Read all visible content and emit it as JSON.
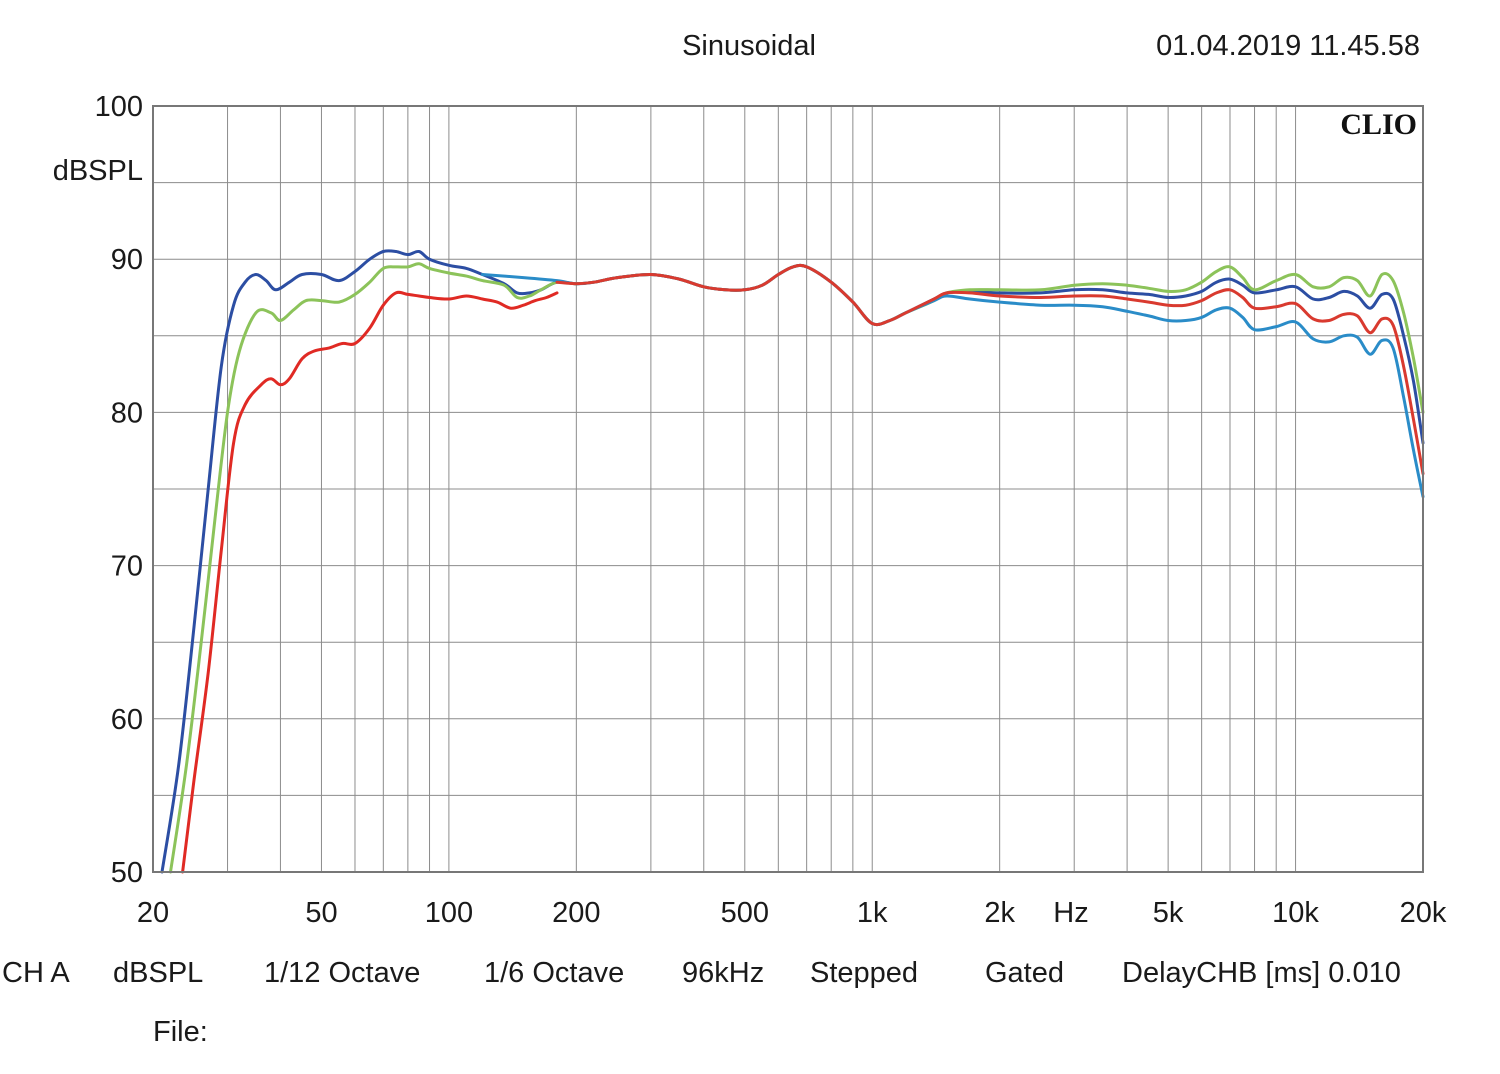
{
  "header": {
    "mode": "Sinusoidal",
    "timestamp": "01.04.2019 11.45.58"
  },
  "brand": "CLIO",
  "footer": {
    "channel": "CH A",
    "unit": "dBSPL",
    "smoothing": "1/12 Octave",
    "resolution": "1/6 Octave",
    "sample_rate": "96kHz",
    "sweep": "Stepped",
    "window": "Gated",
    "delay": "DelayCHB [ms] 0.010",
    "file_label": "File:"
  },
  "chart_data": {
    "type": "line",
    "title": "",
    "xlabel": "Hz",
    "ylabel": "dBSPL",
    "xscale": "log",
    "xlim": [
      20,
      20000
    ],
    "ylim": [
      50,
      100
    ],
    "grid": true,
    "x_ticks": [
      {
        "value": 20,
        "label": "20"
      },
      {
        "value": 50,
        "label": "50"
      },
      {
        "value": 100,
        "label": "100"
      },
      {
        "value": 200,
        "label": "200"
      },
      {
        "value": 500,
        "label": "500"
      },
      {
        "value": 1000,
        "label": "1k"
      },
      {
        "value": 2000,
        "label": "2k"
      },
      {
        "value": 5000,
        "label": "5k"
      },
      {
        "value": 10000,
        "label": "10k"
      },
      {
        "value": 20000,
        "label": "20k"
      }
    ],
    "y_ticks": [
      {
        "value": 50,
        "label": "50"
      },
      {
        "value": 60,
        "label": "60"
      },
      {
        "value": 70,
        "label": "70"
      },
      {
        "value": 80,
        "label": "80"
      },
      {
        "value": 90,
        "label": "90"
      },
      {
        "value": 100,
        "label": "100"
      }
    ],
    "series": [
      {
        "color": "#2c4ea3",
        "points": [
          [
            21,
            50
          ],
          [
            23,
            57
          ],
          [
            25,
            66
          ],
          [
            27,
            75
          ],
          [
            29,
            83
          ],
          [
            31,
            87
          ],
          [
            33,
            88.5
          ],
          [
            35,
            89
          ],
          [
            37,
            88.6
          ],
          [
            39,
            88
          ],
          [
            42,
            88.5
          ],
          [
            45,
            89
          ],
          [
            50,
            89
          ],
          [
            55,
            88.6
          ],
          [
            60,
            89.2
          ],
          [
            65,
            90
          ],
          [
            70,
            90.5
          ],
          [
            75,
            90.5
          ],
          [
            80,
            90.3
          ],
          [
            85,
            90.5
          ],
          [
            90,
            90
          ],
          [
            100,
            89.6
          ],
          [
            110,
            89.4
          ],
          [
            120,
            89
          ],
          [
            135,
            88.4
          ],
          [
            145,
            87.8
          ],
          [
            155,
            87.8
          ],
          [
            165,
            88
          ],
          [
            180,
            88.5
          ],
          [
            200,
            88.4
          ],
          [
            220,
            88.5
          ],
          [
            250,
            88.8
          ],
          [
            300,
            89
          ],
          [
            350,
            88.7
          ],
          [
            400,
            88.2
          ],
          [
            450,
            88
          ],
          [
            500,
            88
          ],
          [
            550,
            88.3
          ],
          [
            600,
            89
          ],
          [
            650,
            89.5
          ],
          [
            700,
            89.5
          ],
          [
            800,
            88.5
          ],
          [
            900,
            87.2
          ],
          [
            1000,
            85.8
          ],
          [
            1100,
            86
          ],
          [
            1200,
            86.5
          ],
          [
            1400,
            87.4
          ],
          [
            1500,
            87.8
          ],
          [
            1700,
            87.9
          ],
          [
            2000,
            87.8
          ],
          [
            2500,
            87.8
          ],
          [
            3000,
            88
          ],
          [
            3500,
            88
          ],
          [
            4000,
            87.8
          ],
          [
            4500,
            87.7
          ],
          [
            5000,
            87.5
          ],
          [
            5500,
            87.6
          ],
          [
            6000,
            87.9
          ],
          [
            6500,
            88.5
          ],
          [
            7000,
            88.7
          ],
          [
            7500,
            88.3
          ],
          [
            8000,
            87.8
          ],
          [
            9000,
            88
          ],
          [
            10000,
            88.2
          ],
          [
            11000,
            87.4
          ],
          [
            12000,
            87.5
          ],
          [
            13000,
            87.9
          ],
          [
            14000,
            87.6
          ],
          [
            15000,
            86.8
          ],
          [
            16000,
            87.7
          ],
          [
            17000,
            87.4
          ],
          [
            18000,
            85
          ],
          [
            19000,
            82
          ],
          [
            20000,
            78
          ]
        ]
      },
      {
        "color": "#8cc35a",
        "points": [
          [
            22,
            50
          ],
          [
            24,
            57
          ],
          [
            26,
            65
          ],
          [
            28,
            73
          ],
          [
            30,
            80
          ],
          [
            32,
            84
          ],
          [
            35,
            86.5
          ],
          [
            38,
            86.5
          ],
          [
            40,
            86
          ],
          [
            43,
            86.7
          ],
          [
            46,
            87.3
          ],
          [
            50,
            87.3
          ],
          [
            55,
            87.2
          ],
          [
            60,
            87.7
          ],
          [
            65,
            88.5
          ],
          [
            70,
            89.4
          ],
          [
            75,
            89.5
          ],
          [
            80,
            89.5
          ],
          [
            85,
            89.7
          ],
          [
            90,
            89.4
          ],
          [
            100,
            89.1
          ],
          [
            110,
            88.9
          ],
          [
            120,
            88.6
          ],
          [
            135,
            88.3
          ],
          [
            145,
            87.5
          ],
          [
            155,
            87.6
          ],
          [
            165,
            88
          ],
          [
            180,
            88.5
          ],
          [
            200,
            88.4
          ],
          [
            220,
            88.5
          ],
          [
            250,
            88.8
          ],
          [
            300,
            89
          ],
          [
            350,
            88.7
          ],
          [
            400,
            88.2
          ],
          [
            450,
            88
          ],
          [
            500,
            88
          ],
          [
            550,
            88.3
          ],
          [
            600,
            89
          ],
          [
            650,
            89.5
          ],
          [
            700,
            89.5
          ],
          [
            800,
            88.5
          ],
          [
            900,
            87.2
          ],
          [
            1000,
            85.8
          ],
          [
            1100,
            86
          ],
          [
            1200,
            86.5
          ],
          [
            1400,
            87.3
          ],
          [
            1500,
            87.8
          ],
          [
            1700,
            88
          ],
          [
            2000,
            88
          ],
          [
            2500,
            88
          ],
          [
            3000,
            88.3
          ],
          [
            3500,
            88.4
          ],
          [
            4000,
            88.3
          ],
          [
            4500,
            88.1
          ],
          [
            5000,
            87.9
          ],
          [
            5500,
            88
          ],
          [
            6000,
            88.5
          ],
          [
            6500,
            89.2
          ],
          [
            7000,
            89.5
          ],
          [
            7500,
            88.8
          ],
          [
            8000,
            88
          ],
          [
            9000,
            88.6
          ],
          [
            10000,
            89
          ],
          [
            11000,
            88.2
          ],
          [
            12000,
            88.2
          ],
          [
            13000,
            88.8
          ],
          [
            14000,
            88.6
          ],
          [
            15000,
            87.6
          ],
          [
            16000,
            89
          ],
          [
            17000,
            88.6
          ],
          [
            18000,
            86.5
          ],
          [
            19000,
            83.5
          ],
          [
            20000,
            80
          ]
        ]
      },
      {
        "color": "#e02a24",
        "points": [
          [
            23.5,
            50
          ],
          [
            25,
            56
          ],
          [
            27,
            63
          ],
          [
            29,
            71
          ],
          [
            31,
            78
          ],
          [
            33,
            80.5
          ],
          [
            36,
            81.8
          ],
          [
            38,
            82.2
          ],
          [
            40,
            81.8
          ],
          [
            42,
            82.2
          ],
          [
            45,
            83.5
          ],
          [
            48,
            84
          ],
          [
            52,
            84.2
          ],
          [
            56,
            84.5
          ],
          [
            60,
            84.5
          ],
          [
            65,
            85.5
          ],
          [
            70,
            87
          ],
          [
            75,
            87.8
          ],
          [
            80,
            87.7
          ],
          [
            85,
            87.6
          ],
          [
            90,
            87.5
          ],
          [
            100,
            87.4
          ],
          [
            110,
            87.6
          ],
          [
            120,
            87.4
          ],
          [
            130,
            87.2
          ],
          [
            140,
            86.8
          ],
          [
            150,
            87
          ],
          [
            160,
            87.3
          ],
          [
            170,
            87.5
          ],
          [
            180,
            87.8
          ]
        ]
      },
      {
        "color": "#2a8cc8",
        "points": [
          [
            120,
            89
          ],
          [
            150,
            88.8
          ],
          [
            180,
            88.6
          ],
          [
            200,
            88.4
          ],
          [
            220,
            88.5
          ],
          [
            250,
            88.8
          ],
          [
            300,
            89
          ],
          [
            350,
            88.7
          ],
          [
            400,
            88.2
          ],
          [
            450,
            88
          ],
          [
            500,
            88
          ],
          [
            550,
            88.3
          ],
          [
            600,
            89
          ],
          [
            650,
            89.5
          ],
          [
            700,
            89.5
          ],
          [
            800,
            88.5
          ],
          [
            900,
            87.2
          ],
          [
            1000,
            85.8
          ],
          [
            1100,
            86
          ],
          [
            1200,
            86.5
          ],
          [
            1400,
            87.3
          ],
          [
            1500,
            87.6
          ],
          [
            1700,
            87.4
          ],
          [
            2000,
            87.2
          ],
          [
            2500,
            87
          ],
          [
            3000,
            87
          ],
          [
            3500,
            86.9
          ],
          [
            4000,
            86.6
          ],
          [
            4500,
            86.3
          ],
          [
            5000,
            86
          ],
          [
            5500,
            86
          ],
          [
            6000,
            86.2
          ],
          [
            6500,
            86.7
          ],
          [
            7000,
            86.8
          ],
          [
            7500,
            86.2
          ],
          [
            8000,
            85.4
          ],
          [
            9000,
            85.6
          ],
          [
            10000,
            85.9
          ],
          [
            11000,
            84.8
          ],
          [
            12000,
            84.6
          ],
          [
            13000,
            85
          ],
          [
            14000,
            84.9
          ],
          [
            15000,
            83.8
          ],
          [
            16000,
            84.7
          ],
          [
            17000,
            84.2
          ],
          [
            18000,
            81
          ],
          [
            19000,
            77.5
          ],
          [
            20000,
            74.5
          ]
        ]
      },
      {
        "color": "#d93a2f",
        "points": [
          [
            180,
            88.5
          ],
          [
            200,
            88.4
          ],
          [
            220,
            88.5
          ],
          [
            250,
            88.8
          ],
          [
            300,
            89
          ],
          [
            350,
            88.7
          ],
          [
            400,
            88.2
          ],
          [
            450,
            88
          ],
          [
            500,
            88
          ],
          [
            550,
            88.3
          ],
          [
            600,
            89
          ],
          [
            650,
            89.5
          ],
          [
            700,
            89.5
          ],
          [
            800,
            88.5
          ],
          [
            900,
            87.2
          ],
          [
            1000,
            85.8
          ],
          [
            1100,
            86
          ],
          [
            1200,
            86.5
          ],
          [
            1400,
            87.4
          ],
          [
            1500,
            87.8
          ],
          [
            1700,
            87.8
          ],
          [
            2000,
            87.6
          ],
          [
            2500,
            87.5
          ],
          [
            3000,
            87.6
          ],
          [
            3500,
            87.6
          ],
          [
            4000,
            87.4
          ],
          [
            4500,
            87.2
          ],
          [
            5000,
            87
          ],
          [
            5500,
            87
          ],
          [
            6000,
            87.3
          ],
          [
            6500,
            87.8
          ],
          [
            7000,
            88
          ],
          [
            7500,
            87.5
          ],
          [
            8000,
            86.8
          ],
          [
            9000,
            86.9
          ],
          [
            10000,
            87.1
          ],
          [
            11000,
            86.1
          ],
          [
            12000,
            86
          ],
          [
            13000,
            86.4
          ],
          [
            14000,
            86.3
          ],
          [
            15000,
            85.2
          ],
          [
            16000,
            86.1
          ],
          [
            17000,
            85.7
          ],
          [
            18000,
            83
          ],
          [
            19000,
            79.5
          ],
          [
            20000,
            76
          ]
        ]
      }
    ]
  }
}
